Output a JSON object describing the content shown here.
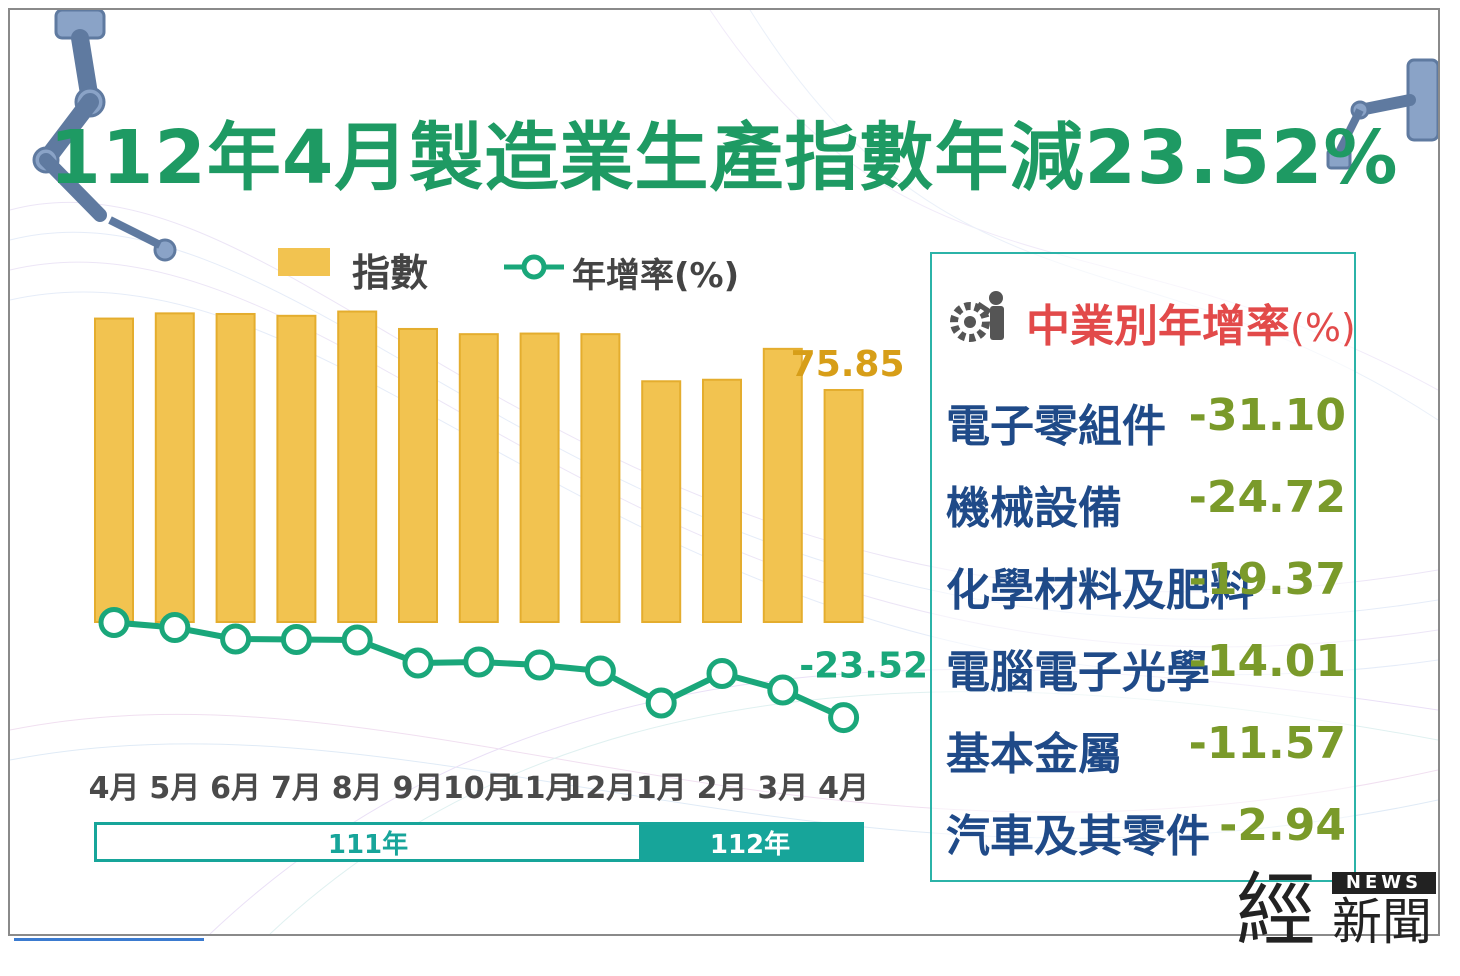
{
  "title": "112年4月製造業生產指數年減23.52%",
  "legend": {
    "bar_label": "指數",
    "line_label": "年增率(%)"
  },
  "colors": {
    "bar": "#f2c350",
    "line": "#1aa77a",
    "title": "#1e9a63",
    "bar_value_label": "#d79e18",
    "line_value_label": "#1aa77a",
    "industry_name": "#1f4a88",
    "industry_value": "#7a9a2a",
    "panel_title": "#e24a4a",
    "year_band": "#17a59a"
  },
  "chart_data": {
    "type": "bar",
    "categories": [
      "4月",
      "5月",
      "6月",
      "7月",
      "8月",
      "9月",
      "10月",
      "11月",
      "12月",
      "1月",
      "2月",
      "3月",
      "4月"
    ],
    "series": [
      {
        "name": "指數",
        "type": "bar",
        "values": [
          99.2,
          100.9,
          100.7,
          100.1,
          101.5,
          95.8,
          94.1,
          94.3,
          94.1,
          78.7,
          79.2,
          89.3,
          75.85
        ]
      },
      {
        "name": "年增率(%)",
        "type": "line",
        "values": [
          -4.5,
          -5.5,
          -7.8,
          -7.9,
          -8.0,
          -12.6,
          -12.4,
          -13.0,
          -14.2,
          -20.6,
          -14.7,
          -18.0,
          -23.52
        ]
      }
    ],
    "labeled_values": {
      "last_index": "75.85",
      "last_growth": "-23.52"
    },
    "year_groups": [
      {
        "label": "111年",
        "count": 9
      },
      {
        "label": "112年",
        "count": 4
      }
    ],
    "ylim_index": [
      0,
      102
    ],
    "ylim_growth": [
      -25,
      0
    ],
    "legend_position": "top-left",
    "grid": false
  },
  "industry_panel": {
    "title": "中業別年增率",
    "title_unit": "(%)",
    "icon": "gear-person-icon",
    "rows": [
      {
        "name": "電子零組件",
        "value": "-31.10"
      },
      {
        "name": "機械設備",
        "value": "-24.72"
      },
      {
        "name": "化學材料及肥料",
        "value": "-19.37"
      },
      {
        "name": "電腦電子光學",
        "value": "-14.01"
      },
      {
        "name": "基本金屬",
        "value": "-11.57"
      },
      {
        "name": "汽車及其零件",
        "value": "-2.94"
      }
    ]
  },
  "logo": {
    "news": "NEWS",
    "jing": "經",
    "xinwen": "新聞"
  }
}
